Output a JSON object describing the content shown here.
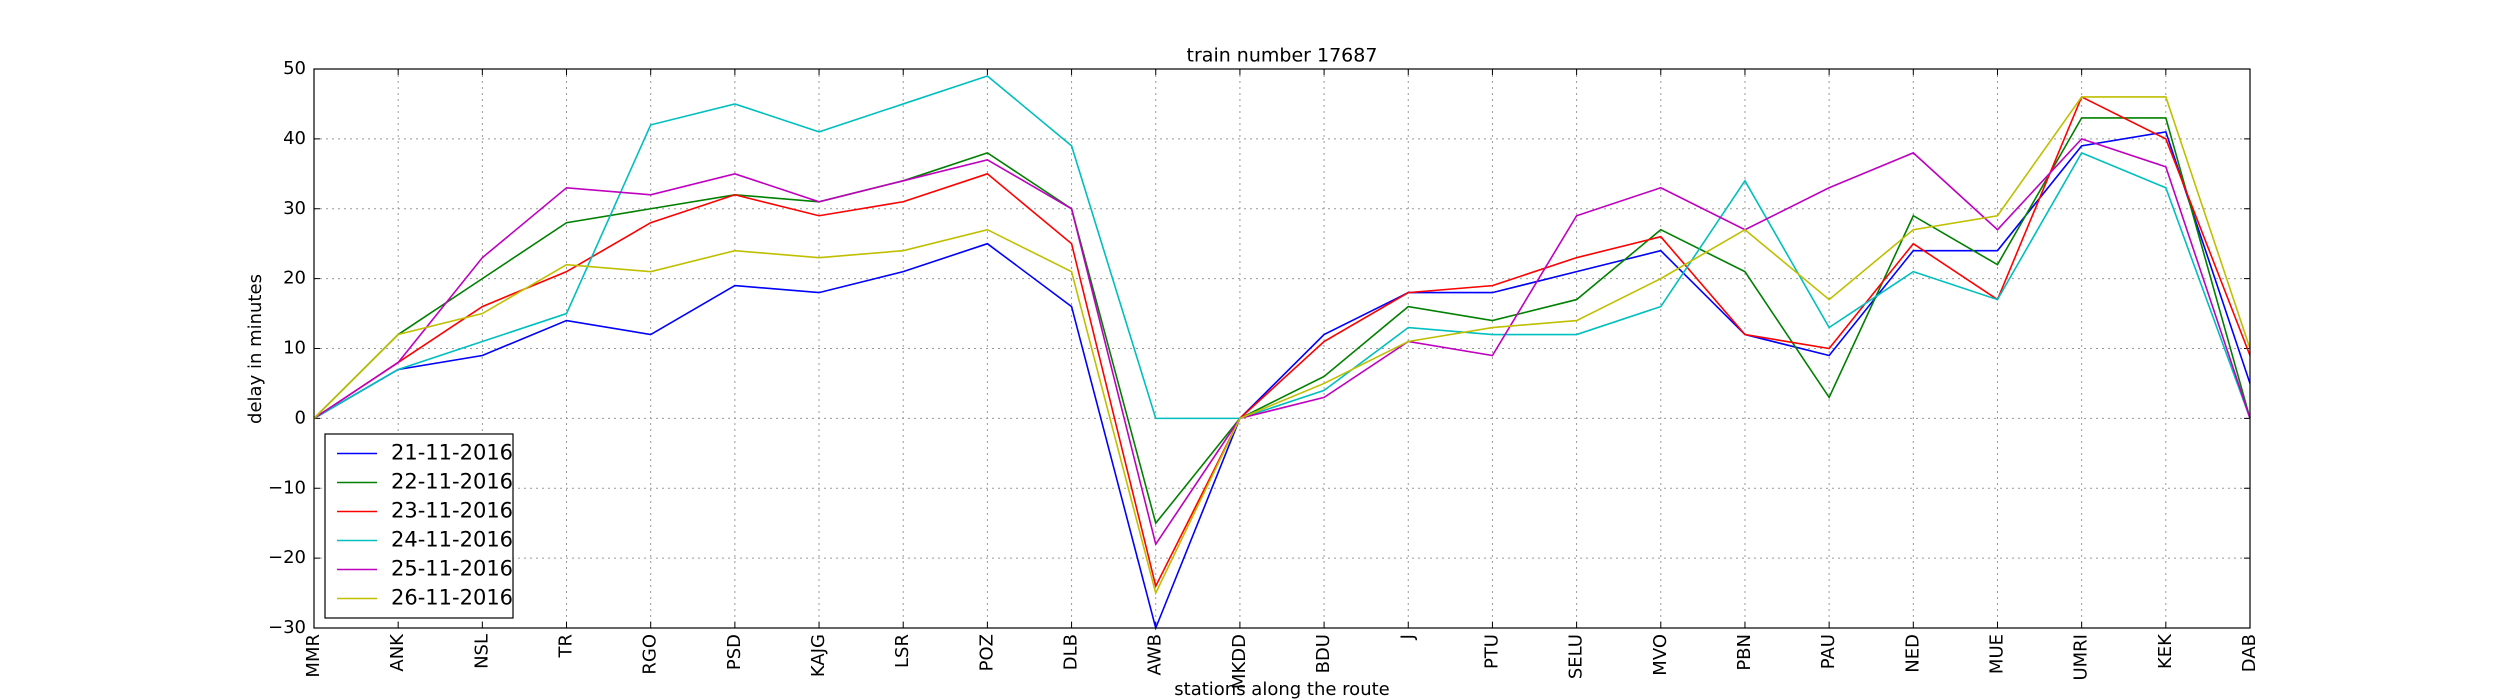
{
  "chart_data": {
    "type": "line",
    "title": "train number 17687",
    "x_label": "stations along the route",
    "y_label": "delay in minutes",
    "categories": [
      "MMR",
      "ANK",
      "NSL",
      "TR",
      "RGO",
      "PSD",
      "KAJG",
      "LSR",
      "POZ",
      "DLB",
      "AWB",
      "MKDD",
      "BDU",
      "J",
      "PTU",
      "SELU",
      "MVO",
      "PBN",
      "PAU",
      "NED",
      "MUE",
      "UMRI",
      "KEK",
      "DAB"
    ],
    "series": [
      {
        "name": "21-11-2016",
        "color": "#0000ff",
        "values": [
          0,
          7,
          9,
          14,
          12,
          19,
          18,
          21,
          25,
          16,
          -30,
          0,
          12,
          18,
          18,
          21,
          24,
          12,
          9,
          24,
          24,
          39,
          41,
          5
        ]
      },
      {
        "name": "22-11-2016",
        "color": "#008000",
        "values": [
          0,
          12,
          20,
          28,
          30,
          32,
          31,
          34,
          38,
          30,
          -15,
          0,
          6,
          16,
          14,
          17,
          27,
          21,
          3,
          29,
          22,
          43,
          43,
          0
        ]
      },
      {
        "name": "23-11-2016",
        "color": "#ff0000",
        "values": [
          0,
          8,
          16,
          21,
          28,
          32,
          29,
          31,
          35,
          25,
          -24,
          0,
          11,
          18,
          19,
          23,
          26,
          12,
          10,
          25,
          17,
          46,
          40,
          9
        ]
      },
      {
        "name": "24-11-2016",
        "color": "#00bfbf",
        "values": [
          0,
          7,
          11,
          15,
          42,
          45,
          41,
          45,
          49,
          39,
          0,
          0,
          4,
          13,
          12,
          12,
          16,
          34,
          13,
          21,
          17,
          38,
          33,
          0
        ]
      },
      {
        "name": "25-11-2016",
        "color": "#bf00bf",
        "values": [
          0,
          8,
          23,
          33,
          32,
          35,
          31,
          34,
          37,
          30,
          -18,
          0,
          3,
          11,
          9,
          29,
          33,
          27,
          33,
          38,
          27,
          40,
          36,
          0
        ]
      },
      {
        "name": "26-11-2016",
        "color": "#bfbf00",
        "values": [
          0,
          12,
          15,
          22,
          21,
          24,
          23,
          24,
          27,
          21,
          -25,
          0,
          5,
          11,
          13,
          14,
          20,
          27,
          17,
          27,
          29,
          46,
          46,
          10
        ]
      }
    ],
    "ylim": [
      -30,
      50
    ],
    "yticks": [
      {
        "value": -30,
        "label": "−30"
      },
      {
        "value": -20,
        "label": "−20"
      },
      {
        "value": -10,
        "label": "−10"
      },
      0,
      10,
      20,
      30,
      40,
      50
    ],
    "grid": true,
    "legend": "lower left"
  }
}
